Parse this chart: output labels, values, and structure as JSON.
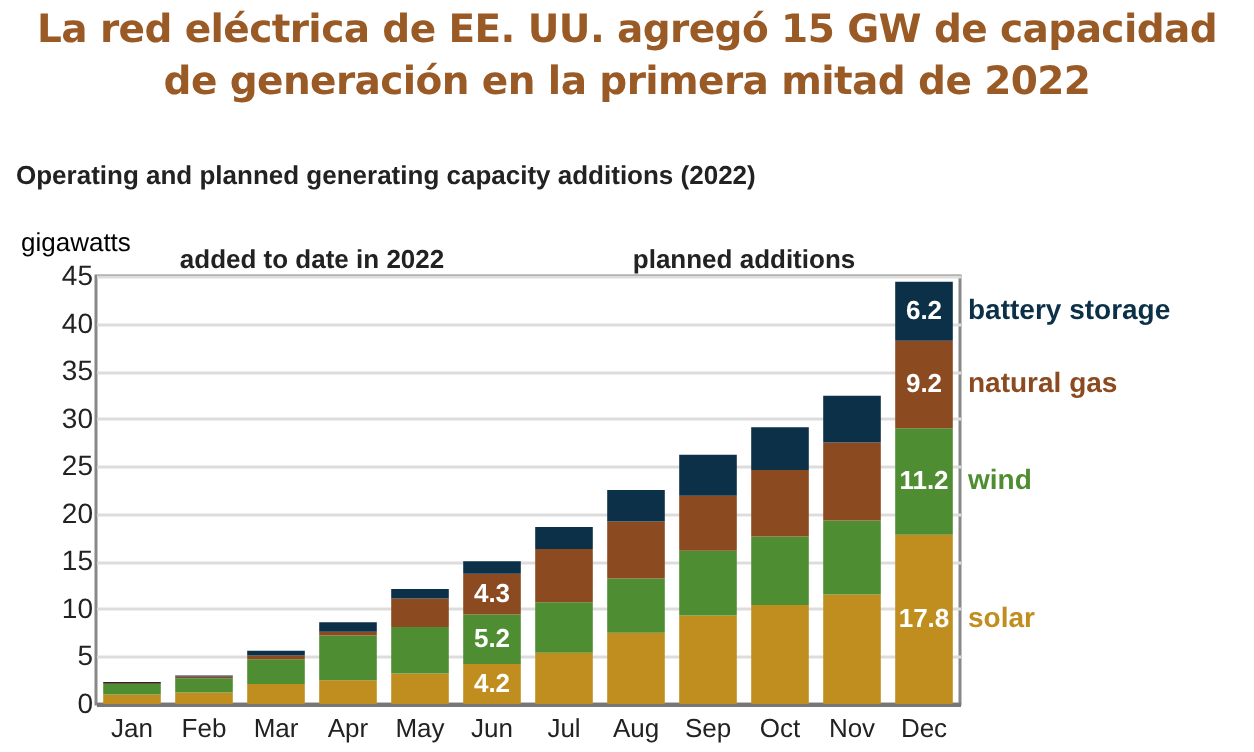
{
  "chart_data": {
    "type": "bar",
    "stacked": true,
    "title": "La red eléctrica de EE. UU. agregó 15 GW de capacidad de generación en la primera mitad de 2022",
    "subtitle": "Operating and planned generating capacity additions (2022)",
    "ylabel": "gigawatts",
    "annotations": [
      "added to date in 2022",
      "planned additions"
    ],
    "categories": [
      "Jan",
      "Feb",
      "Mar",
      "Apr",
      "May",
      "Jun",
      "Jul",
      "Aug",
      "Sep",
      "Oct",
      "Nov",
      "Dec"
    ],
    "series": [
      {
        "name": "solar",
        "color": "#c08e1e",
        "values": [
          1.0,
          1.2,
          2.1,
          2.5,
          3.2,
          4.2,
          5.4,
          7.5,
          9.3,
          10.4,
          11.5,
          17.8
        ],
        "value_labels": [
          null,
          null,
          null,
          null,
          null,
          "4.2",
          null,
          null,
          null,
          null,
          null,
          "17.8"
        ]
      },
      {
        "name": "wind",
        "color": "#4f8d32",
        "values": [
          1.1,
          1.5,
          2.6,
          4.7,
          4.9,
          5.2,
          5.3,
          5.7,
          6.8,
          7.2,
          7.8,
          11.2
        ],
        "value_labels": [
          null,
          null,
          null,
          null,
          null,
          "5.2",
          null,
          null,
          null,
          null,
          null,
          "11.2"
        ]
      },
      {
        "name": "natural gas",
        "color": "#8b4a20",
        "values": [
          0.1,
          0.2,
          0.4,
          0.4,
          3.0,
          4.3,
          5.6,
          6.0,
          5.8,
          7.0,
          8.2,
          9.2
        ],
        "value_labels": [
          null,
          null,
          null,
          null,
          null,
          "4.3",
          null,
          null,
          null,
          null,
          null,
          "9.2"
        ]
      },
      {
        "name": "battery storage",
        "color": "#0c3048",
        "values": [
          0.1,
          0.1,
          0.5,
          1.0,
          1.0,
          1.3,
          2.3,
          3.3,
          4.3,
          4.5,
          4.9,
          6.2
        ],
        "value_labels": [
          null,
          null,
          null,
          null,
          null,
          null,
          null,
          null,
          null,
          null,
          null,
          "6.2"
        ]
      }
    ],
    "ylim": [
      0,
      45
    ],
    "yticks": [
      0,
      5,
      10,
      15,
      20,
      25,
      30,
      35,
      40,
      45
    ],
    "grid": "y",
    "legend": false
  }
}
